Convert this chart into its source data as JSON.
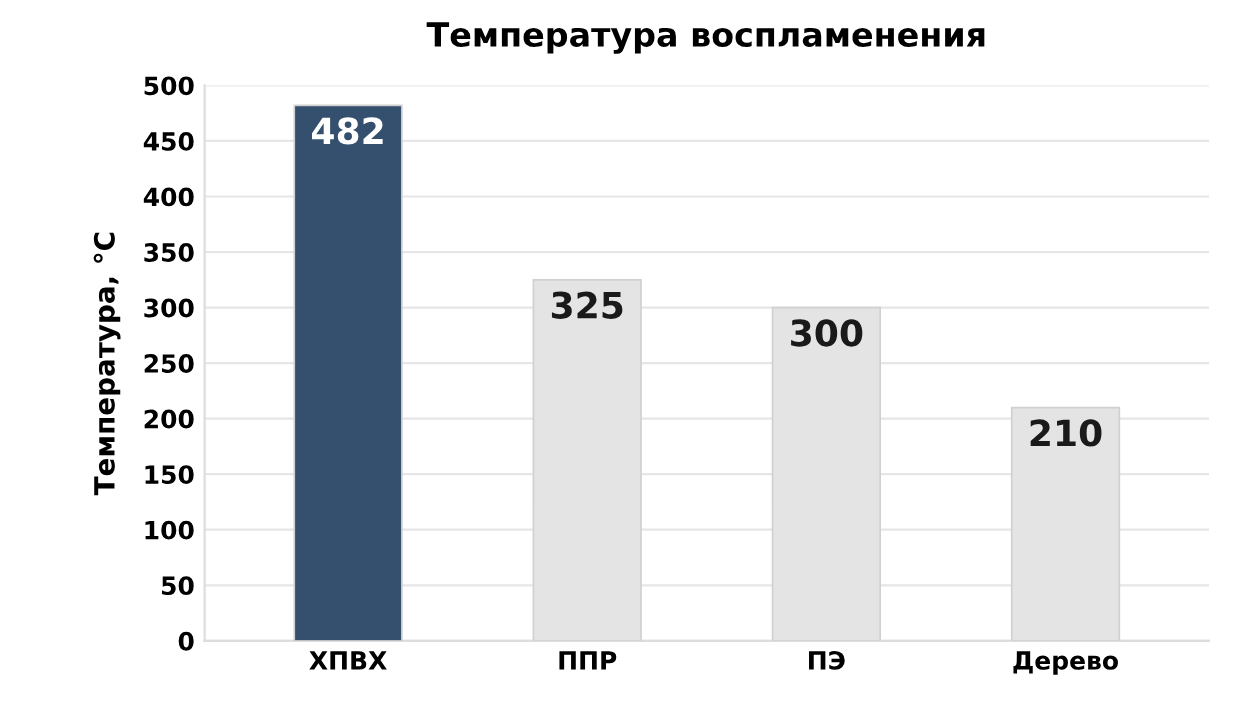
{
  "chart_data": {
    "type": "bar",
    "title": "Температура воспламенения",
    "ylabel": "Температура, °C",
    "categories": [
      "ХПВХ",
      "ППР",
      "ПЭ",
      "Дерево"
    ],
    "values": [
      482,
      325,
      300,
      210
    ],
    "colors": [
      "#34506e",
      "#e4e4e4",
      "#e4e4e4",
      "#e4e4e4"
    ],
    "ylim": [
      0,
      500
    ],
    "yticks": [
      0,
      50,
      100,
      150,
      200,
      250,
      300,
      350,
      400,
      450,
      500
    ],
    "grid": "y",
    "data_labels": true
  }
}
